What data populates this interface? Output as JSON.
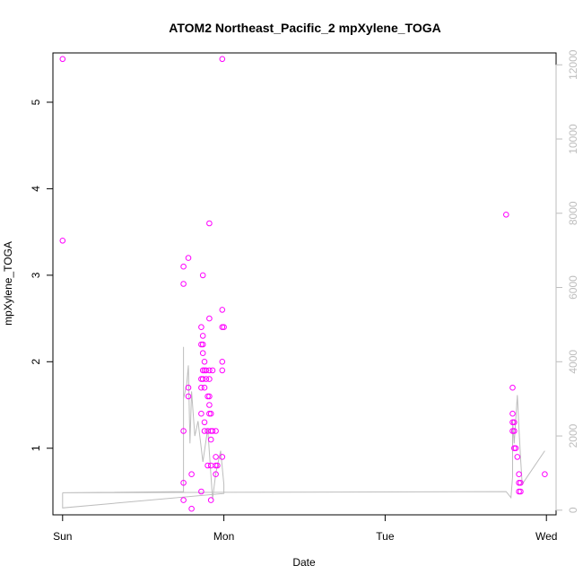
{
  "chart_data": {
    "type": "scatter",
    "title": "ATOM2 Northeast_Pacific_2 mpXylene_TOGA",
    "xlabel": "Date",
    "ylabel": "mpXylene_TOGA",
    "x_ticks": [
      {
        "label": "Sun",
        "value": 0
      },
      {
        "label": "Mon",
        "value": 1
      },
      {
        "label": "Tue",
        "value": 2
      },
      {
        "label": "Wed",
        "value": 3
      }
    ],
    "xlim": [
      -0.06,
      3.06
    ],
    "ylim": [
      0.23,
      5.57
    ],
    "y_ticks": [
      1,
      2,
      3,
      4,
      5
    ],
    "y2lim": [
      -125,
      12320
    ],
    "y2_ticks": [
      0,
      2000,
      4000,
      6000,
      8000,
      10000,
      12000
    ],
    "point_color": "#ff00ff",
    "line_color": "#bdbdbd",
    "grid": false,
    "series": [
      {
        "type": "scatter",
        "points": [
          [
            0.0,
            5.5
          ],
          [
            0.0,
            3.4
          ],
          [
            0.75,
            3.1
          ],
          [
            0.75,
            2.9
          ],
          [
            0.75,
            1.2
          ],
          [
            0.75,
            0.6
          ],
          [
            0.75,
            0.4
          ],
          [
            0.78,
            3.2
          ],
          [
            0.78,
            1.7
          ],
          [
            0.78,
            1.6
          ],
          [
            0.8,
            0.7
          ],
          [
            0.8,
            0.3
          ],
          [
            0.86,
            1.4
          ],
          [
            0.86,
            0.5
          ],
          [
            0.86,
            2.4
          ],
          [
            0.86,
            2.2
          ],
          [
            0.86,
            1.8
          ],
          [
            0.86,
            1.7
          ],
          [
            0.87,
            3.0
          ],
          [
            0.87,
            2.3
          ],
          [
            0.87,
            2.2
          ],
          [
            0.87,
            2.1
          ],
          [
            0.87,
            1.9
          ],
          [
            0.87,
            1.8
          ],
          [
            0.88,
            2.0
          ],
          [
            0.88,
            1.9
          ],
          [
            0.88,
            1.7
          ],
          [
            0.88,
            1.3
          ],
          [
            0.88,
            1.2
          ],
          [
            0.89,
            1.9
          ],
          [
            0.89,
            1.8
          ],
          [
            0.9,
            1.6
          ],
          [
            0.9,
            1.2
          ],
          [
            0.9,
            0.8
          ],
          [
            0.91,
            3.6
          ],
          [
            0.91,
            2.5
          ],
          [
            0.91,
            1.9
          ],
          [
            0.91,
            1.8
          ],
          [
            0.91,
            1.6
          ],
          [
            0.91,
            1.5
          ],
          [
            0.91,
            1.4
          ],
          [
            0.92,
            1.4
          ],
          [
            0.92,
            1.2
          ],
          [
            0.92,
            1.1
          ],
          [
            0.92,
            0.8
          ],
          [
            0.92,
            0.4
          ],
          [
            0.93,
            1.9
          ],
          [
            0.93,
            1.2
          ],
          [
            0.95,
            1.2
          ],
          [
            0.95,
            0.9
          ],
          [
            0.95,
            0.8
          ],
          [
            0.95,
            0.7
          ],
          [
            0.96,
            0.8
          ],
          [
            0.99,
            5.5
          ],
          [
            0.99,
            2.6
          ],
          [
            0.99,
            2.4
          ],
          [
            0.99,
            2.0
          ],
          [
            0.99,
            1.9
          ],
          [
            0.99,
            0.9
          ],
          [
            1.0,
            2.4
          ],
          [
            2.75,
            3.7
          ],
          [
            2.79,
            1.7
          ],
          [
            2.79,
            1.4
          ],
          [
            2.79,
            1.3
          ],
          [
            2.79,
            1.2
          ],
          [
            2.8,
            1.3
          ],
          [
            2.8,
            1.2
          ],
          [
            2.8,
            1.0
          ],
          [
            2.81,
            1.0
          ],
          [
            2.82,
            0.9
          ],
          [
            2.83,
            0.7
          ],
          [
            2.83,
            0.6
          ],
          [
            2.83,
            0.5
          ],
          [
            2.84,
            0.6
          ],
          [
            2.84,
            0.5
          ],
          [
            2.99,
            0.7
          ]
        ]
      },
      {
        "type": "line",
        "axis": "right",
        "points": [
          [
            0.0,
            470
          ],
          [
            0.0,
            60
          ],
          [
            1.0,
            450
          ],
          [
            1.0,
            700
          ],
          [
            0.98,
            1600
          ],
          [
            0.95,
            1000
          ],
          [
            0.93,
            300
          ],
          [
            0.9,
            2200
          ],
          [
            0.87,
            1300
          ],
          [
            0.84,
            2400
          ],
          [
            0.82,
            2000
          ],
          [
            0.8,
            3200
          ],
          [
            0.79,
            1800
          ],
          [
            0.78,
            3900
          ],
          [
            0.77,
            3400
          ],
          [
            0.75,
            3000
          ],
          [
            0.75,
            4400
          ],
          [
            0.75,
            1900
          ],
          [
            0.75,
            500
          ],
          [
            0.0,
            470
          ],
          [
            2.75,
            500
          ],
          [
            2.78,
            340
          ],
          [
            2.79,
            900
          ],
          [
            2.79,
            2400
          ],
          [
            2.8,
            1800
          ],
          [
            2.82,
            3100
          ],
          [
            2.83,
            2200
          ],
          [
            2.84,
            1400
          ],
          [
            2.85,
            700
          ],
          [
            2.99,
            1600
          ]
        ]
      }
    ]
  }
}
